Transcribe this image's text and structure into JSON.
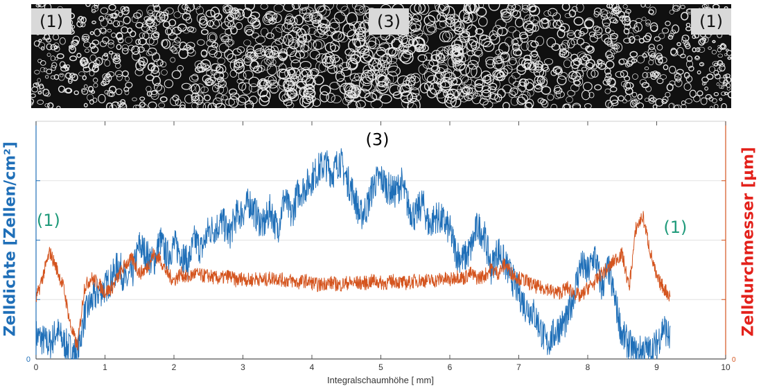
{
  "image_strip": {
    "labels": [
      "(1)",
      "(3)",
      "(1)"
    ]
  },
  "chart_data": {
    "type": "line",
    "title": "",
    "xlabel": "Integralschaumhöhe [ mm]",
    "ylabel_left": "Zelldichte [Zellen/cm²]",
    "ylabel_right": "Zelldurchmesser [µm]",
    "xlim": [
      0,
      10
    ],
    "x_ticks": [
      "0",
      "1",
      "2",
      "3",
      "4",
      "5",
      "6",
      "7",
      "8",
      "9",
      "10"
    ],
    "y_left_tick_labels": [
      "0"
    ],
    "y_right_tick_labels": [
      "0"
    ],
    "ylim": [
      0,
      100
    ],
    "grid": true,
    "annotations": [
      {
        "text": "(3)",
        "x": 4.95,
        "y": 90,
        "color": "#000000"
      },
      {
        "text": "(1)",
        "x": 0.18,
        "y": 56,
        "color": "#1f9a7a"
      },
      {
        "text": "(1)",
        "x": 9.27,
        "y": 53,
        "color": "#1f9a7a"
      }
    ],
    "series": [
      {
        "axis": "left",
        "color": "#1f6fb8",
        "x": [
          0.0,
          0.1,
          0.2,
          0.3,
          0.4,
          0.5,
          0.6,
          0.7,
          0.8,
          0.9,
          1.0,
          1.1,
          1.2,
          1.3,
          1.4,
          1.5,
          1.6,
          1.7,
          1.8,
          1.9,
          2.0,
          2.1,
          2.2,
          2.3,
          2.4,
          2.5,
          2.6,
          2.7,
          2.8,
          2.9,
          3.0,
          3.1,
          3.2,
          3.3,
          3.4,
          3.5,
          3.6,
          3.7,
          3.8,
          3.9,
          4.0,
          4.1,
          4.2,
          4.3,
          4.4,
          4.5,
          4.6,
          4.7,
          4.8,
          4.9,
          5.0,
          5.1,
          5.2,
          5.3,
          5.4,
          5.5,
          5.6,
          5.7,
          5.8,
          5.9,
          6.0,
          6.1,
          6.2,
          6.3,
          6.4,
          6.5,
          6.6,
          6.7,
          6.8,
          6.9,
          7.0,
          7.1,
          7.2,
          7.3,
          7.4,
          7.5,
          7.6,
          7.7,
          7.8,
          7.9,
          8.0,
          8.1,
          8.2,
          8.3,
          8.4,
          8.5,
          8.6,
          8.7,
          8.8,
          8.9,
          9.0,
          9.1,
          9.2
        ],
        "y": [
          10,
          8,
          6,
          12,
          7,
          4,
          2,
          18,
          24,
          28,
          30,
          34,
          40,
          32,
          36,
          48,
          44,
          40,
          50,
          43,
          48,
          45,
          40,
          50,
          46,
          54,
          55,
          58,
          52,
          60,
          62,
          66,
          60,
          56,
          63,
          54,
          68,
          60,
          70,
          72,
          76,
          80,
          82,
          78,
          84,
          76,
          70,
          60,
          64,
          74,
          76,
          72,
          70,
          74,
          64,
          60,
          66,
          56,
          60,
          58,
          54,
          44,
          42,
          46,
          56,
          52,
          38,
          46,
          40,
          34,
          28,
          22,
          20,
          14,
          6,
          10,
          14,
          16,
          28,
          40,
          36,
          44,
          30,
          38,
          24,
          10,
          6,
          2,
          4,
          3,
          6,
          14,
          8
        ]
      },
      {
        "axis": "right",
        "color": "#d4541e",
        "x": [
          0.0,
          0.1,
          0.2,
          0.3,
          0.4,
          0.5,
          0.6,
          0.7,
          0.8,
          0.9,
          1.0,
          1.1,
          1.2,
          1.3,
          1.4,
          1.5,
          1.6,
          1.7,
          1.8,
          1.9,
          2.0,
          2.1,
          2.2,
          2.3,
          2.4,
          2.5,
          2.6,
          2.7,
          2.8,
          2.9,
          3.0,
          3.1,
          3.2,
          3.3,
          3.4,
          3.5,
          3.6,
          3.7,
          3.8,
          3.9,
          4.0,
          4.1,
          4.2,
          4.3,
          4.4,
          4.5,
          4.6,
          4.7,
          4.8,
          4.9,
          5.0,
          5.1,
          5.2,
          5.3,
          5.4,
          5.5,
          5.6,
          5.7,
          5.8,
          5.9,
          6.0,
          6.1,
          6.2,
          6.3,
          6.4,
          6.5,
          6.6,
          6.7,
          6.8,
          6.9,
          7.0,
          7.1,
          7.2,
          7.3,
          7.4,
          7.5,
          7.6,
          7.7,
          7.8,
          7.9,
          8.0,
          8.1,
          8.2,
          8.3,
          8.4,
          8.5,
          8.6,
          8.7,
          8.8,
          8.9,
          9.0,
          9.1,
          9.2
        ],
        "y": [
          25,
          35,
          45,
          38,
          30,
          14,
          5,
          30,
          34,
          32,
          28,
          30,
          35,
          40,
          42,
          36,
          38,
          44,
          42,
          36,
          33,
          36,
          34,
          36,
          35,
          35,
          34,
          34,
          35,
          33,
          34,
          33,
          34,
          33,
          34,
          34,
          33,
          33,
          32,
          33,
          32,
          31,
          32,
          32,
          31,
          32,
          32,
          32,
          32,
          33,
          32,
          32,
          33,
          32,
          32,
          33,
          33,
          33,
          33,
          34,
          33,
          35,
          34,
          36,
          34,
          35,
          38,
          36,
          40,
          36,
          34,
          33,
          31,
          30,
          30,
          28,
          28,
          30,
          28,
          26,
          30,
          32,
          36,
          38,
          42,
          44,
          30,
          55,
          60,
          46,
          34,
          30,
          26
        ]
      }
    ]
  }
}
